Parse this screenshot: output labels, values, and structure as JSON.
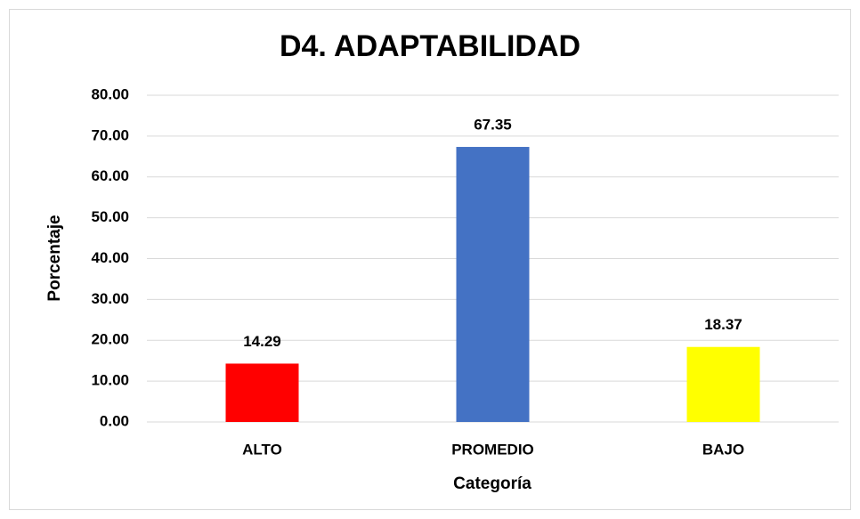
{
  "chart_data": {
    "type": "bar",
    "title": "D4. ADAPTABILIDAD",
    "x_label": "Categoría",
    "y_label": "Porcentaje",
    "categories": [
      "ALTO",
      "PROMEDIO",
      "BAJO"
    ],
    "values": [
      14.29,
      67.35,
      18.37
    ],
    "colors": [
      "#ff0000",
      "#4472c4",
      "#ffff00"
    ],
    "ylim": [
      0,
      80
    ],
    "yticks": [
      {
        "value": 0,
        "label": "0.00"
      },
      {
        "value": 10,
        "label": "10.00"
      },
      {
        "value": 20,
        "label": "20.00"
      },
      {
        "value": 30,
        "label": "30.00"
      },
      {
        "value": 40,
        "label": "40.00"
      },
      {
        "value": 50,
        "label": "50.00"
      },
      {
        "value": 60,
        "label": "60.00"
      },
      {
        "value": 70,
        "label": "70.00"
      },
      {
        "value": 80,
        "label": "80.00"
      }
    ],
    "grid": true
  }
}
